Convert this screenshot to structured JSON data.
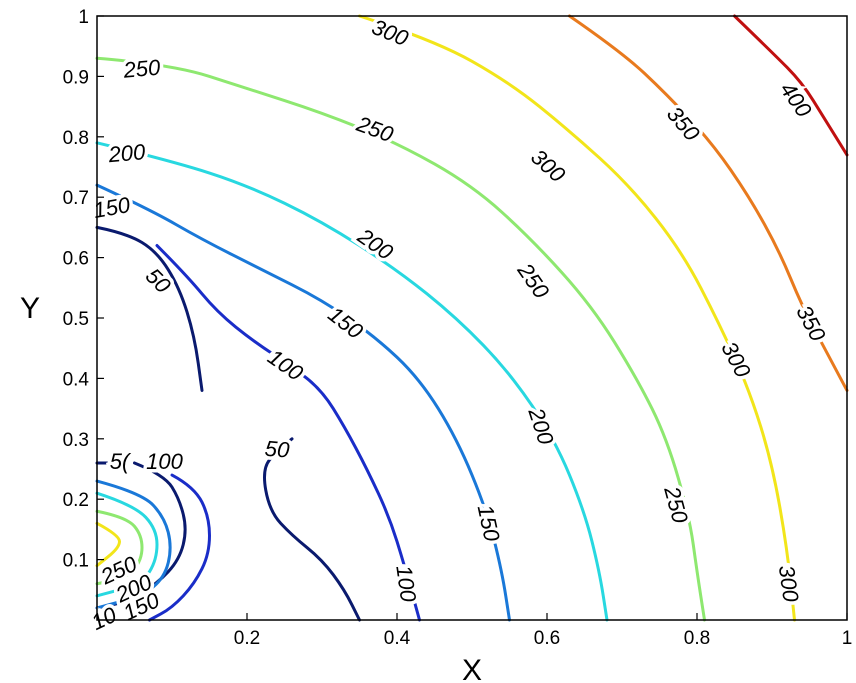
{
  "chart_data": {
    "type": "contour",
    "title": "",
    "xlabel": "X",
    "ylabel": "Y",
    "xlim": [
      0,
      1
    ],
    "ylim": [
      0,
      1
    ],
    "x_ticks": [
      "0.2",
      "0.4",
      "0.6",
      "0.8",
      "1"
    ],
    "y_ticks": [
      "0.1",
      "0.2",
      "0.3",
      "0.4",
      "0.5",
      "0.6",
      "0.7",
      "0.8",
      "0.9",
      "1"
    ],
    "grid": false,
    "colormap": "jet",
    "levels": [
      {
        "level": 50,
        "color": "#0a1a6e",
        "contours": [
          [
            [
              0.0,
              0.65
            ],
            [
              0.04,
              0.64
            ],
            [
              0.08,
              0.61
            ],
            [
              0.11,
              0.55
            ],
            [
              0.13,
              0.47
            ],
            [
              0.14,
              0.38
            ]
          ],
          [
            [
              0.26,
              0.3
            ],
            [
              0.24,
              0.28
            ],
            [
              0.22,
              0.25
            ],
            [
              0.23,
              0.18
            ],
            [
              0.26,
              0.14
            ],
            [
              0.3,
              0.1
            ],
            [
              0.33,
              0.05
            ],
            [
              0.35,
              0.0
            ]
          ],
          [
            [
              0.0,
              0.26
            ],
            [
              0.02,
              0.26
            ]
          ],
          [
            [
              0.05,
              0.26
            ],
            [
              0.09,
              0.24
            ],
            [
              0.11,
              0.2
            ],
            [
              0.12,
              0.15
            ],
            [
              0.11,
              0.1
            ],
            [
              0.08,
              0.06
            ],
            [
              0.04,
              0.03
            ],
            [
              0.0,
              0.02
            ]
          ]
        ]
      },
      {
        "level": 100,
        "color": "#1a2dc8",
        "contours": [
          [
            [
              0.08,
              0.62
            ],
            [
              0.12,
              0.57
            ],
            [
              0.16,
              0.51
            ],
            [
              0.21,
              0.46
            ],
            [
              0.26,
              0.42
            ],
            [
              0.3,
              0.38
            ],
            [
              0.33,
              0.32
            ],
            [
              0.36,
              0.25
            ],
            [
              0.39,
              0.17
            ],
            [
              0.41,
              0.09
            ],
            [
              0.43,
              0.0
            ]
          ],
          [
            [
              0.1,
              0.24
            ],
            [
              0.13,
              0.22
            ],
            [
              0.15,
              0.17
            ],
            [
              0.15,
              0.11
            ],
            [
              0.13,
              0.06
            ],
            [
              0.1,
              0.02
            ],
            [
              0.07,
              0.0
            ]
          ]
        ]
      },
      {
        "level": 150,
        "color": "#1a78d8",
        "contours": [
          [
            [
              0.0,
              0.72
            ],
            [
              0.07,
              0.68
            ],
            [
              0.14,
              0.63
            ],
            [
              0.22,
              0.58
            ],
            [
              0.3,
              0.53
            ],
            [
              0.37,
              0.47
            ],
            [
              0.43,
              0.4
            ],
            [
              0.48,
              0.3
            ],
            [
              0.52,
              0.18
            ],
            [
              0.54,
              0.08
            ],
            [
              0.55,
              0.0
            ]
          ],
          [
            [
              0.0,
              0.23
            ],
            [
              0.06,
              0.21
            ],
            [
              0.09,
              0.17
            ],
            [
              0.1,
              0.12
            ],
            [
              0.09,
              0.07
            ],
            [
              0.06,
              0.04
            ],
            [
              0.0,
              0.02
            ]
          ]
        ]
      },
      {
        "level": 200,
        "color": "#28d8e0",
        "contours": [
          [
            [
              0.0,
              0.79
            ],
            [
              0.1,
              0.76
            ],
            [
              0.2,
              0.72
            ],
            [
              0.3,
              0.66
            ],
            [
              0.4,
              0.58
            ],
            [
              0.48,
              0.5
            ],
            [
              0.55,
              0.41
            ],
            [
              0.61,
              0.3
            ],
            [
              0.65,
              0.18
            ],
            [
              0.67,
              0.08
            ],
            [
              0.68,
              0.0
            ]
          ],
          [
            [
              0.0,
              0.21
            ],
            [
              0.05,
              0.19
            ],
            [
              0.08,
              0.15
            ],
            [
              0.08,
              0.1
            ],
            [
              0.06,
              0.06
            ],
            [
              0.0,
              0.04
            ]
          ]
        ]
      },
      {
        "level": 250,
        "color": "#8ee870",
        "contours": [
          [
            [
              0.0,
              0.93
            ],
            [
              0.1,
              0.92
            ],
            [
              0.2,
              0.88
            ],
            [
              0.3,
              0.84
            ],
            [
              0.4,
              0.79
            ],
            [
              0.5,
              0.72
            ],
            [
              0.58,
              0.63
            ],
            [
              0.66,
              0.52
            ],
            [
              0.72,
              0.4
            ],
            [
              0.76,
              0.3
            ],
            [
              0.79,
              0.17
            ],
            [
              0.8,
              0.08
            ],
            [
              0.81,
              0.0
            ]
          ],
          [
            [
              0.0,
              0.18
            ],
            [
              0.04,
              0.17
            ],
            [
              0.06,
              0.14
            ],
            [
              0.06,
              0.1
            ],
            [
              0.04,
              0.07
            ],
            [
              0.0,
              0.06
            ]
          ]
        ]
      },
      {
        "level": 300,
        "color": "#f2e51a",
        "contours": [
          [
            [
              0.35,
              1.0
            ],
            [
              0.45,
              0.96
            ],
            [
              0.55,
              0.89
            ],
            [
              0.63,
              0.81
            ],
            [
              0.71,
              0.72
            ],
            [
              0.78,
              0.61
            ],
            [
              0.83,
              0.49
            ],
            [
              0.87,
              0.38
            ],
            [
              0.9,
              0.26
            ],
            [
              0.92,
              0.12
            ],
            [
              0.93,
              0.0
            ]
          ],
          [
            [
              0.0,
              0.16
            ],
            [
              0.03,
              0.14
            ],
            [
              0.03,
              0.12
            ],
            [
              0.0,
              0.09
            ]
          ]
        ]
      },
      {
        "level": 350,
        "color": "#e87a1e",
        "contours": [
          [
            [
              0.63,
              1.0
            ],
            [
              0.7,
              0.94
            ],
            [
              0.76,
              0.87
            ],
            [
              0.82,
              0.79
            ],
            [
              0.87,
              0.7
            ],
            [
              0.91,
              0.61
            ],
            [
              0.94,
              0.52
            ],
            [
              0.97,
              0.45
            ],
            [
              1.0,
              0.38
            ]
          ]
        ]
      },
      {
        "level": 400,
        "color": "#c01010",
        "contours": [
          [
            [
              0.85,
              1.0
            ],
            [
              0.9,
              0.94
            ],
            [
              0.94,
              0.89
            ],
            [
              0.97,
              0.83
            ],
            [
              1.0,
              0.77
            ]
          ]
        ]
      }
    ],
    "labels": [
      {
        "text": "300",
        "x": 0.39,
        "y": 0.97,
        "rot": 22
      },
      {
        "text": "250",
        "x": 0.06,
        "y": 0.91,
        "rot": -5
      },
      {
        "text": "250",
        "x": 0.37,
        "y": 0.81,
        "rot": 20
      },
      {
        "text": "300",
        "x": 0.6,
        "y": 0.75,
        "rot": 42
      },
      {
        "text": "350",
        "x": 0.78,
        "y": 0.82,
        "rot": 50
      },
      {
        "text": "400",
        "x": 0.93,
        "y": 0.86,
        "rot": 55
      },
      {
        "text": "200",
        "x": 0.04,
        "y": 0.77,
        "rot": -5
      },
      {
        "text": "200",
        "x": 0.37,
        "y": 0.62,
        "rot": 35
      },
      {
        "text": "250",
        "x": 0.58,
        "y": 0.56,
        "rot": 55
      },
      {
        "text": "150",
        "x": 0.02,
        "y": 0.68,
        "rot": -10
      },
      {
        "text": "150",
        "x": 0.33,
        "y": 0.49,
        "rot": 38
      },
      {
        "text": "350",
        "x": 0.95,
        "y": 0.49,
        "rot": 62
      },
      {
        "text": "300",
        "x": 0.85,
        "y": 0.43,
        "rot": 62
      },
      {
        "text": "100",
        "x": 0.25,
        "y": 0.42,
        "rot": 35
      },
      {
        "text": "200",
        "x": 0.59,
        "y": 0.32,
        "rot": 72
      },
      {
        "text": "50",
        "x": 0.08,
        "y": 0.56,
        "rot": 45
      },
      {
        "text": "50",
        "x": 0.24,
        "y": 0.28,
        "rot": 5
      },
      {
        "text": "5(",
        "x": 0.03,
        "y": 0.26,
        "rot": 0
      },
      {
        "text": "100",
        "x": 0.09,
        "y": 0.26,
        "rot": 0
      },
      {
        "text": "150",
        "x": 0.52,
        "y": 0.16,
        "rot": 78
      },
      {
        "text": "250",
        "x": 0.77,
        "y": 0.19,
        "rot": 75
      },
      {
        "text": "100",
        "x": 0.41,
        "y": 0.06,
        "rot": 82
      },
      {
        "text": "300",
        "x": 0.92,
        "y": 0.06,
        "rot": 82
      },
      {
        "text": "250",
        "x": 0.03,
        "y": 0.08,
        "rot": -25
      },
      {
        "text": "200",
        "x": 0.05,
        "y": 0.05,
        "rot": -25
      },
      {
        "text": "150",
        "x": 0.06,
        "y": 0.02,
        "rot": -25
      },
      {
        "text": "10",
        "x": 0.01,
        "y": 0.0,
        "rot": -25
      }
    ]
  }
}
